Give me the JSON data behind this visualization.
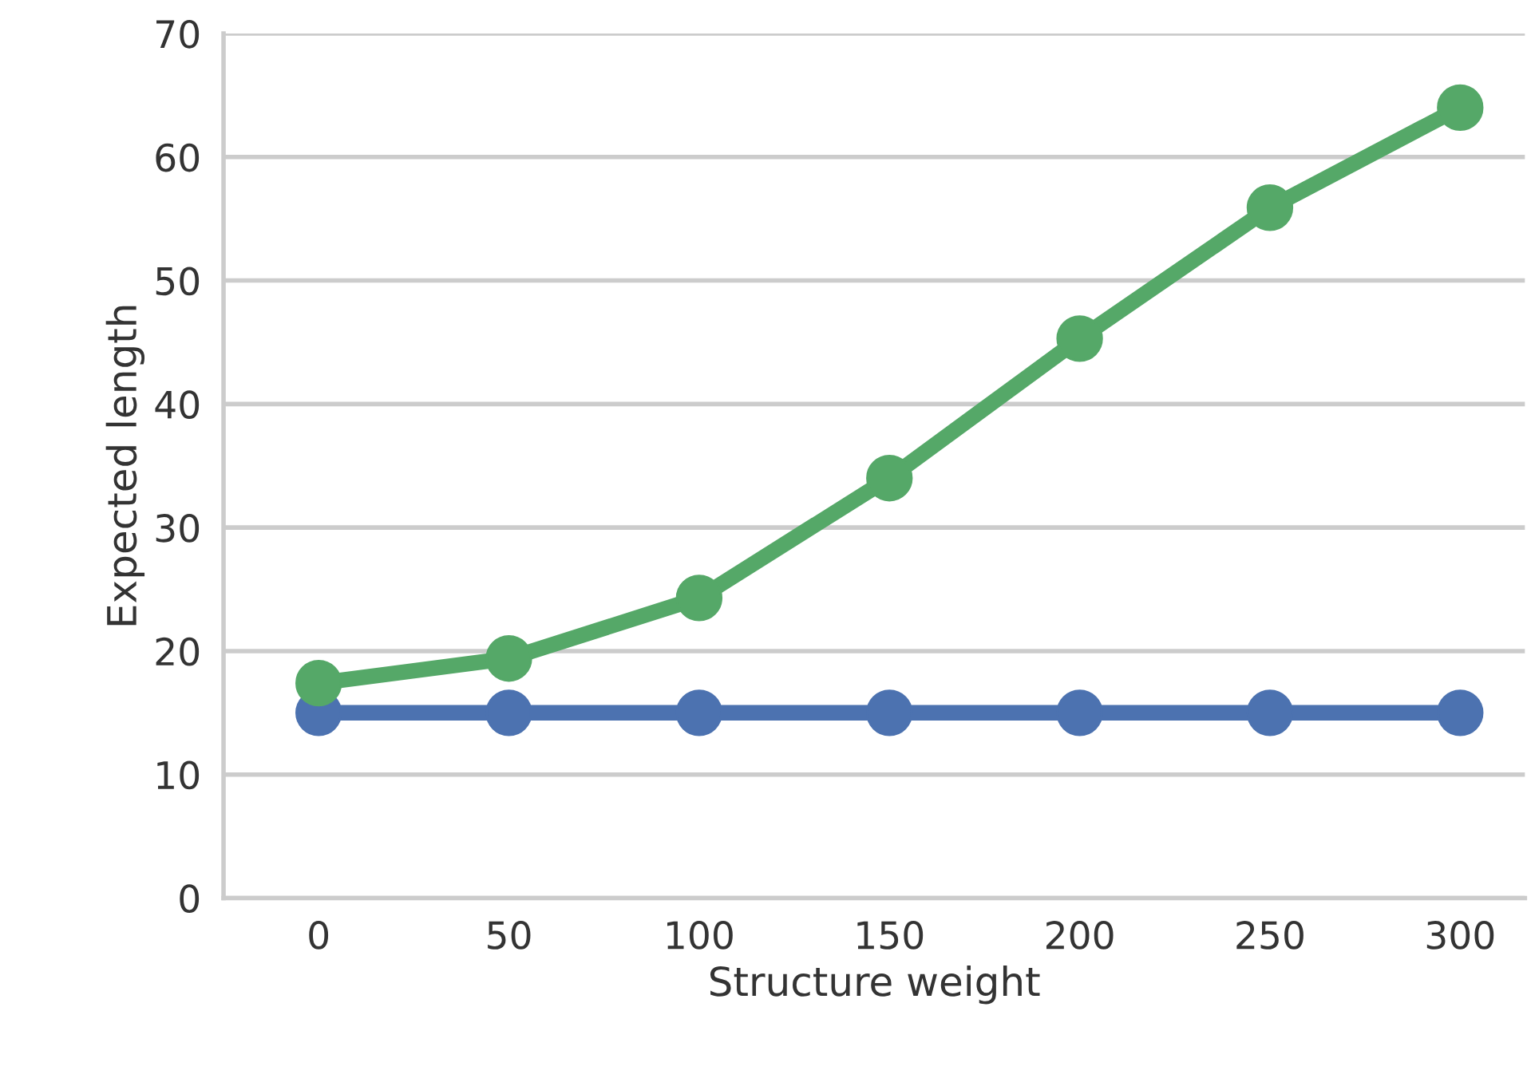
{
  "chart_data": {
    "type": "line",
    "xlabel": "Structure weight",
    "ylabel": "Expected length",
    "x": [
      0,
      50,
      100,
      150,
      200,
      250,
      300
    ],
    "series": [
      {
        "color": "#4c72b0",
        "values": [
          15,
          15,
          15,
          15,
          15,
          15,
          15
        ]
      },
      {
        "color": "#55a868",
        "values": [
          17.4,
          19.4,
          24.3,
          34.0,
          45.3,
          55.9,
          64.0
        ]
      }
    ],
    "xlim": [
      -25,
      317
    ],
    "xticks": [
      0,
      50,
      100,
      150,
      200,
      250,
      300
    ],
    "ylim": [
      0,
      70
    ],
    "yticks": [
      0,
      10,
      20,
      30,
      40,
      50,
      60,
      70
    ],
    "grid": "y",
    "marker": "circle",
    "line_style": "solid",
    "legend": false
  }
}
